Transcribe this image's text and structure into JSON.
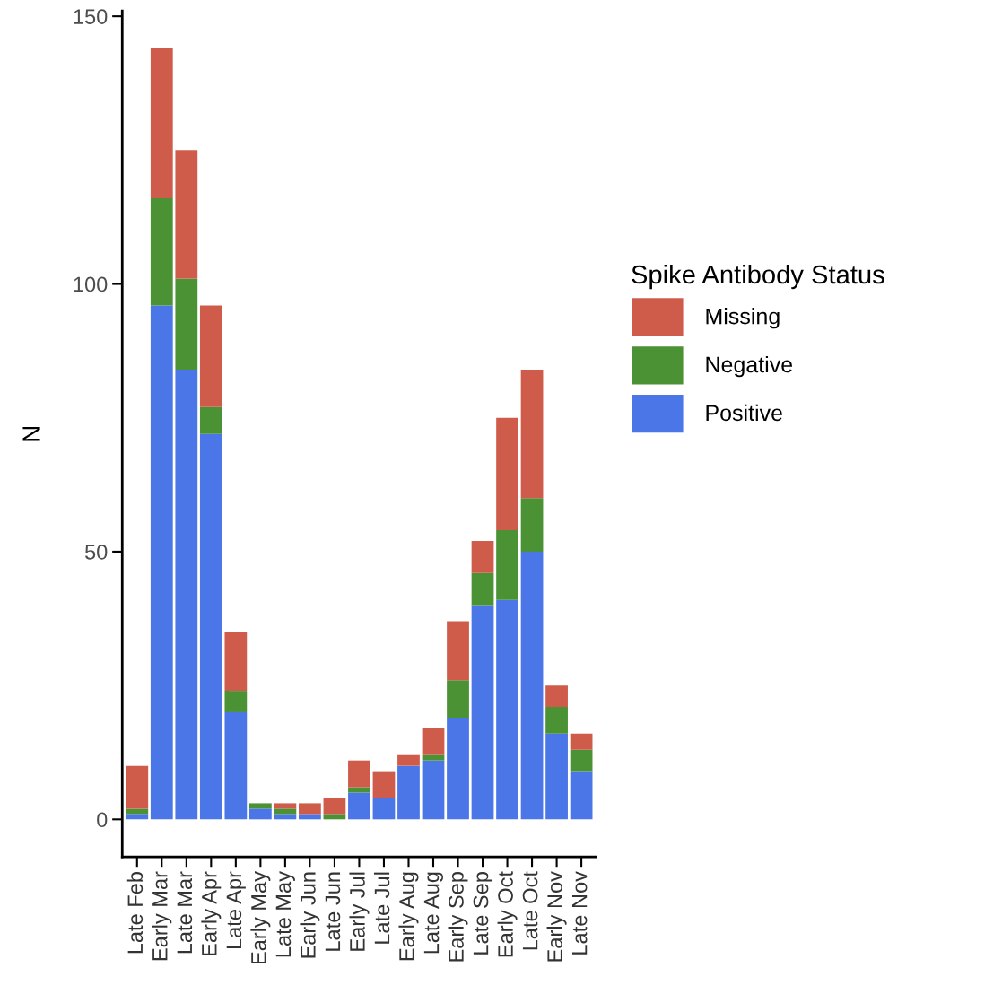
{
  "chart_data": {
    "type": "bar",
    "stacked": true,
    "ylabel": "N",
    "legend_title": "Spike Antibody Status",
    "legend": "right",
    "grid": false,
    "categories": [
      "Late Feb",
      "Early Mar",
      "Late Mar",
      "Early Apr",
      "Late Apr",
      "Early May",
      "Late May",
      "Early Jun",
      "Late Jun",
      "Early Jul",
      "Late Jul",
      "Early Aug",
      "Late Aug",
      "Early Sep",
      "Late Sep",
      "Early Oct",
      "Late Oct",
      "Early Nov",
      "Late Nov"
    ],
    "series": [
      {
        "name": "Positive",
        "color": "#4a76e8",
        "values": [
          1,
          96,
          84,
          72,
          20,
          2,
          1,
          1,
          0,
          5,
          4,
          10,
          11,
          19,
          40,
          41,
          50,
          16,
          9
        ]
      },
      {
        "name": "Negative",
        "color": "#4a9234",
        "values": [
          1,
          20,
          17,
          5,
          4,
          1,
          1,
          0,
          1,
          1,
          0,
          0,
          1,
          7,
          6,
          13,
          10,
          5,
          4
        ]
      },
      {
        "name": "Missing",
        "color": "#cf5b4b",
        "values": [
          8,
          28,
          24,
          19,
          11,
          0,
          1,
          2,
          3,
          5,
          5,
          2,
          5,
          11,
          6,
          21,
          24,
          4,
          3
        ]
      }
    ],
    "ylim": [
      -7,
      151
    ],
    "yticks": [
      0,
      50,
      100,
      150
    ]
  }
}
